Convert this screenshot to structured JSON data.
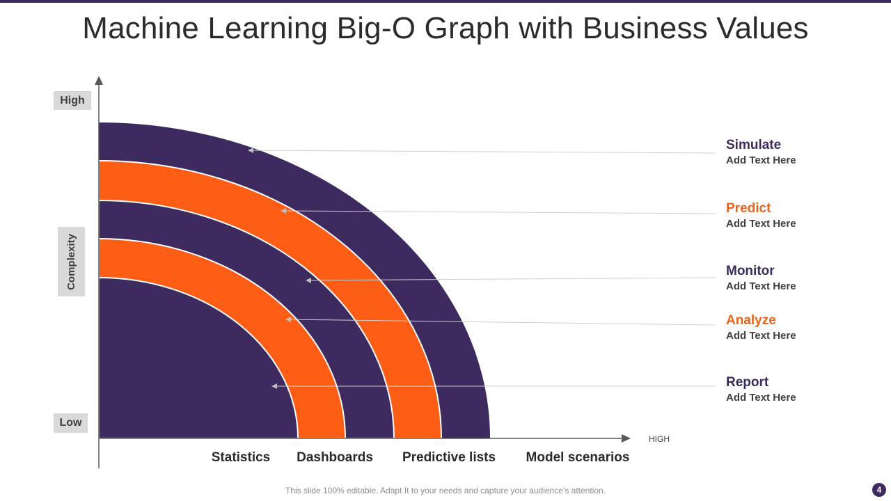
{
  "title": "Machine Learning Big-O Graph with Business Values",
  "colors": {
    "purple": "#3d2a5e",
    "orange": "#fe5d16",
    "axis": "#595959",
    "leader": "#cfcfcf"
  },
  "y_axis": {
    "high": "High",
    "low": "Low",
    "label": "Complexity"
  },
  "x_axis": {
    "high": "HIGH",
    "categories": [
      "Statistics",
      "Dashboards",
      "Predictive lists",
      "Model scenarios"
    ]
  },
  "labels": [
    {
      "title": "Simulate",
      "subtitle": "Add Text Here",
      "color": "#3d2a5e"
    },
    {
      "title": "Predict",
      "subtitle": "Add Text Here",
      "color": "#e8641d"
    },
    {
      "title": "Monitor",
      "subtitle": "Add Text Here",
      "color": "#3d2a5e"
    },
    {
      "title": "Analyze",
      "subtitle": "Add Text Here",
      "color": "#e8641d"
    },
    {
      "title": "Report",
      "subtitle": "Add Text Here",
      "color": "#3d2a5e"
    }
  ],
  "footer": "This slide 100% editable. Adapt  It to your needs and capture your audience’s attention.",
  "page_number": "4"
}
